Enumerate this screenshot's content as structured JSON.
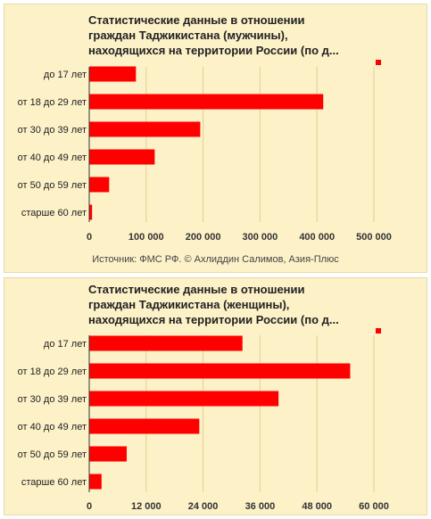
{
  "chart_data": [
    {
      "type": "bar",
      "orientation": "horizontal",
      "title_lines": [
        "Статистические данные в отношении",
        "граждан Таджикистана (мужчины),",
        "находящихся на территории России (по д..."
      ],
      "categories": [
        "до 17 лет",
        "от 18 до 29 лет",
        "от 30 до 39 лет",
        "от 40 до 49 лет",
        "от 50 до 59 лет",
        "старше 60 лет"
      ],
      "values": [
        82000,
        411000,
        195000,
        115000,
        35000,
        5000
      ],
      "xlim": [
        0,
        500000
      ],
      "ticks": [
        0,
        100000,
        200000,
        300000,
        400000,
        500000
      ],
      "tick_labels": [
        "0",
        "100 000",
        "200 000",
        "300 000",
        "400 000",
        "500 000"
      ],
      "grid": true,
      "legend": "top-right",
      "source": "Источник: ФМС РФ. © Ахлиддин Салимов, Азия-Плюс"
    },
    {
      "type": "bar",
      "orientation": "horizontal",
      "title_lines": [
        "Статистические данные в отношении",
        "граждан Таджикистана (женщины),",
        "находящихся на территории России (по д..."
      ],
      "categories": [
        "до 17 лет",
        "от 18 до 29 лет",
        "от 30 до 39 лет",
        "от 40 до 49 лет",
        "от 50 до 59 лет",
        "старше 60 лет"
      ],
      "values": [
        32300,
        55000,
        39900,
        23200,
        7900,
        2600
      ],
      "xlim": [
        0,
        60000
      ],
      "ticks": [
        0,
        12000,
        24000,
        36000,
        48000,
        60000
      ],
      "tick_labels": [
        "0",
        "12 000",
        "24 000",
        "36 000",
        "48 000",
        "60 000"
      ],
      "grid": true,
      "legend": "top-right"
    }
  ],
  "colors": {
    "bar": "#ff0000",
    "grid": "#e0cf95",
    "axis": "#333333"
  }
}
